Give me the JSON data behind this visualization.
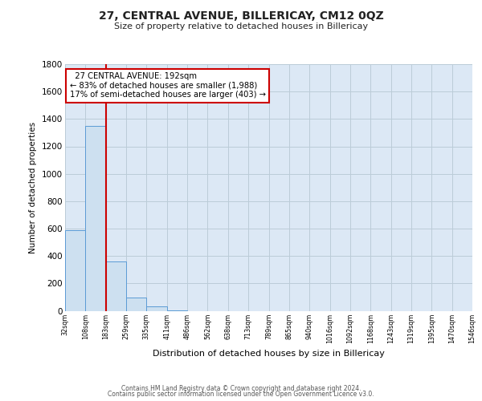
{
  "title": "27, CENTRAL AVENUE, BILLERICAY, CM12 0QZ",
  "subtitle": "Size of property relative to detached houses in Billericay",
  "xlabel": "Distribution of detached houses by size in Billericay",
  "ylabel": "Number of detached properties",
  "bar_values": [
    590,
    1350,
    360,
    95,
    35,
    5,
    0,
    0,
    0,
    0,
    0,
    0,
    0,
    0,
    0,
    0,
    0,
    0,
    0,
    0
  ],
  "bin_labels": [
    "32sqm",
    "108sqm",
    "183sqm",
    "259sqm",
    "335sqm",
    "411sqm",
    "486sqm",
    "562sqm",
    "638sqm",
    "713sqm",
    "789sqm",
    "865sqm",
    "940sqm",
    "1016sqm",
    "1092sqm",
    "1168sqm",
    "1243sqm",
    "1319sqm",
    "1395sqm",
    "1470sqm",
    "1546sqm"
  ],
  "bar_color": "#cde0f0",
  "bar_edge_color": "#5b9bd5",
  "marker_label": "27 CENTRAL AVENUE: 192sqm",
  "annotation_line1": "← 83% of detached houses are smaller (1,988)",
  "annotation_line2": "17% of semi-detached houses are larger (403) →",
  "annotation_box_color": "#ffffff",
  "annotation_box_edge": "#cc0000",
  "red_line_color": "#cc0000",
  "ylim": [
    0,
    1800
  ],
  "yticks": [
    0,
    200,
    400,
    600,
    800,
    1000,
    1200,
    1400,
    1600,
    1800
  ],
  "grid_color": "#cccccc",
  "bg_color": "#dce8f5",
  "footer1": "Contains HM Land Registry data © Crown copyright and database right 2024.",
  "footer2": "Contains public sector information licensed under the Open Government Licence v3.0."
}
